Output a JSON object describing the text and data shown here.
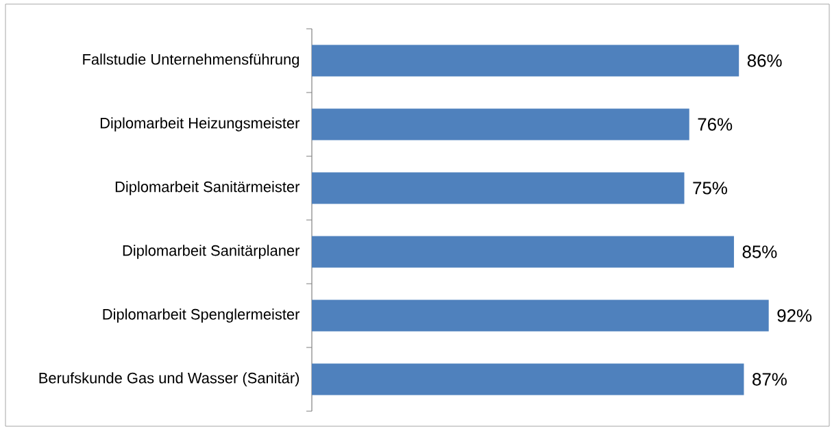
{
  "chart_data": {
    "type": "bar",
    "orientation": "horizontal",
    "categories": [
      "Fallstudie Unternehmensführung",
      "Diplomarbeit Heizungsmeister",
      "Diplomarbeit Sanitärmeister",
      "Diplomarbeit Sanitärplaner",
      "Diplomarbeit Spenglermeister",
      "Berufskunde Gas und Wasser (Sanitär)"
    ],
    "values": [
      86,
      76,
      75,
      85,
      92,
      87
    ],
    "value_labels": [
      "86%",
      "76%",
      "75%",
      "85%",
      "92%",
      "87%"
    ],
    "color": "#4f81bd"
  }
}
